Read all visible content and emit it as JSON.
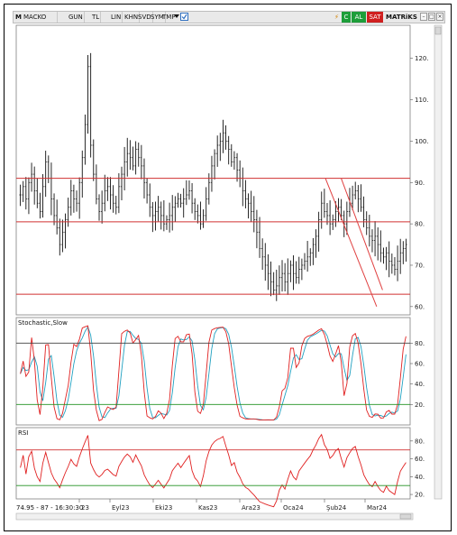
{
  "toolbar": {
    "menu_icon": "M",
    "symbol": "MACKO",
    "buttons": [
      "GUN",
      "TL",
      "LIN",
      "KHN",
      "SVD",
      "SYM",
      "TMP"
    ],
    "dropdown_icon": "triangle-down-icon",
    "lightning_label": "⚡",
    "c_label": "C",
    "buy_label": "AL",
    "sell_label": "SAT",
    "matrix_label": "MATRiKS",
    "window_controls": [
      "–",
      "□",
      "×"
    ]
  },
  "colors": {
    "price_bars": "#111111",
    "horizontal_lines": "#d03030",
    "channel_lines": "#e04040",
    "stoch_k": "#e02020",
    "stoch_d": "#20a0c0",
    "rsi": "#e02020",
    "upper_band": "#404040",
    "lower_band": "#209020",
    "al_bg": "#1e9e3a",
    "sat_bg": "#d02020",
    "c_bg": "#1e9e3a"
  },
  "status_readout": "74.95 - 87 - 16:30:30",
  "x_axis_labels": [
    "23",
    "Eyl23",
    "Eki23",
    "Kas23",
    "Ara23",
    "Oca24",
    "Şub24",
    "Mar24"
  ],
  "chart_data": [
    {
      "type": "ohlc",
      "title": "",
      "price_ticks": [
        "120.",
        "110.",
        "100.",
        "90.",
        "80.",
        "70.",
        "60."
      ],
      "ylim": [
        58,
        128
      ],
      "horizontal_levels": [
        91,
        80.5,
        63
      ],
      "channel_lines": [
        {
          "from": [
            0.785,
            91
          ],
          "to": [
            0.915,
            60
          ]
        },
        {
          "from": [
            0.825,
            91
          ],
          "to": [
            0.93,
            64
          ]
        }
      ],
      "closes": [
        87,
        89,
        86,
        90,
        92,
        88,
        85,
        83,
        89,
        95,
        91,
        86,
        82,
        79,
        75,
        78,
        81,
        84,
        88,
        86,
        85,
        90,
        96,
        104,
        118,
        99,
        92,
        86,
        83,
        85,
        88,
        89,
        87,
        85,
        84,
        89,
        92,
        95,
        97,
        96,
        94,
        98,
        96,
        94,
        90,
        87,
        84,
        82,
        83,
        84,
        82,
        80,
        81,
        82,
        84,
        85,
        86,
        85,
        86,
        87,
        88,
        85,
        83,
        82,
        80,
        82,
        86,
        90,
        94,
        97,
        99,
        100,
        102,
        100,
        98,
        95,
        96,
        93,
        91,
        88,
        86,
        85,
        83,
        81,
        78,
        74,
        72,
        70,
        68,
        66,
        64,
        65,
        67,
        68,
        66,
        68,
        70,
        68,
        67,
        69,
        70,
        71,
        72,
        73,
        75,
        77,
        81,
        85,
        83,
        82,
        80,
        81,
        83,
        84,
        82,
        80,
        83,
        85,
        87,
        88,
        86,
        84,
        81,
        79,
        77,
        76,
        77,
        75,
        73,
        72,
        73,
        71,
        70,
        69,
        71,
        73,
        74,
        75
      ],
      "stochastic": {
        "label": "Stochastic,Slow",
        "ticks": [
          "80.",
          "60.",
          "40.",
          "20."
        ],
        "ylim": [
          0,
          105
        ],
        "upper_band": 80,
        "lower_band": 20
      },
      "rsi": {
        "label": "RSI",
        "ticks": [
          "80.",
          "60.",
          "40.",
          "20."
        ],
        "ylim": [
          15,
          95
        ],
        "upper_band": 70,
        "lower_band": 30
      }
    }
  ]
}
